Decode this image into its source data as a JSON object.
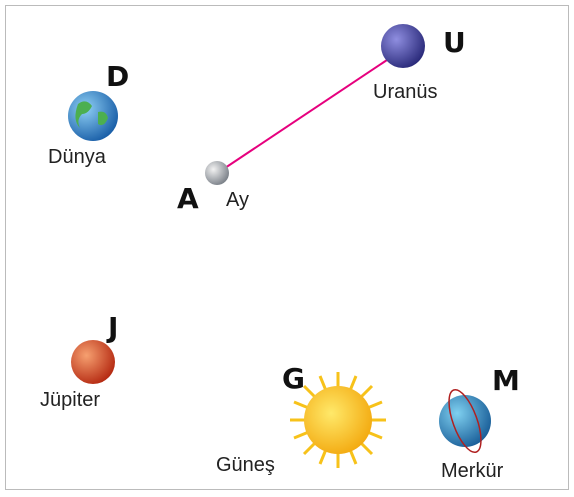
{
  "nodes": [
    {
      "letter": "U",
      "label": "Uranüs"
    },
    {
      "letter": "D",
      "label": "Dünya"
    },
    {
      "letter": "A",
      "label": "Ay"
    },
    {
      "letter": "J",
      "label": "Jüpiter"
    },
    {
      "letter": "G",
      "label": "Güneş"
    },
    {
      "letter": "M",
      "label": "Merkür"
    }
  ]
}
